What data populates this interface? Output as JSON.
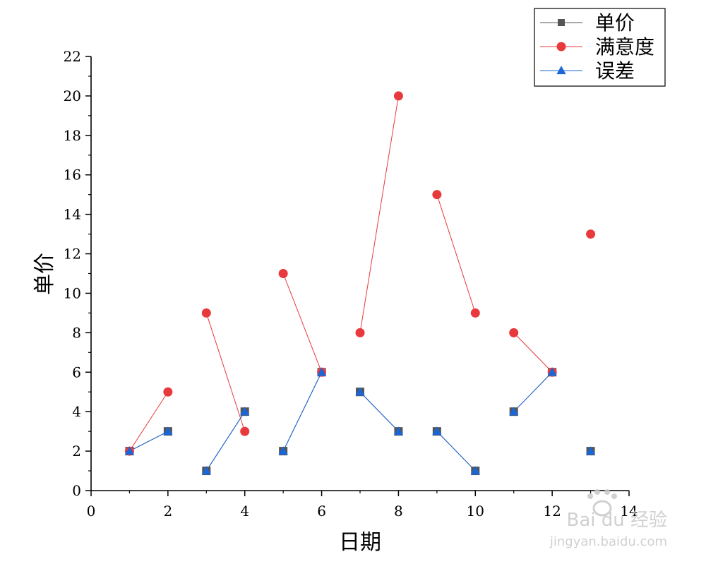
{
  "chart_data": {
    "type": "line",
    "xlabel": "日期",
    "ylabel": "单价",
    "xlim": [
      0,
      14
    ],
    "ylim": [
      0,
      22
    ],
    "x_ticks": [
      0,
      2,
      4,
      6,
      8,
      10,
      12,
      14
    ],
    "y_ticks": [
      0,
      2,
      4,
      6,
      8,
      10,
      12,
      14,
      16,
      18,
      20,
      22
    ],
    "grid": false,
    "legend_position": "top-right",
    "segments": [
      [
        1,
        2
      ],
      [
        3,
        4
      ],
      [
        5,
        6
      ],
      [
        7,
        8
      ],
      [
        9,
        10
      ],
      [
        11,
        12
      ],
      [
        13
      ]
    ],
    "series": [
      {
        "name": "单价",
        "marker": "square",
        "color": "#555555",
        "x": [
          1,
          2,
          3,
          4,
          5,
          6,
          7,
          8,
          9,
          10,
          11,
          12,
          13
        ],
        "values": [
          2,
          3,
          1,
          4,
          2,
          6,
          5,
          3,
          3,
          1,
          4,
          6,
          2
        ]
      },
      {
        "name": "满意度",
        "marker": "circle",
        "color": "#e8393d",
        "x": [
          1,
          2,
          3,
          4,
          5,
          6,
          7,
          8,
          9,
          10,
          11,
          12,
          13
        ],
        "values": [
          2,
          5,
          9,
          3,
          11,
          6,
          8,
          20,
          15,
          9,
          8,
          6,
          13
        ]
      },
      {
        "name": "误差",
        "marker": "triangle",
        "color": "#1a66d6",
        "x": [
          1,
          2,
          3,
          4,
          5,
          6,
          7,
          8,
          9,
          10,
          11,
          12,
          13
        ],
        "values": [
          2,
          3,
          1,
          4,
          2,
          6,
          5,
          3,
          3,
          1,
          4,
          6,
          2
        ]
      }
    ]
  },
  "watermark": {
    "brand": "Bai du 经验",
    "url": "jingyan.baidu.com"
  }
}
